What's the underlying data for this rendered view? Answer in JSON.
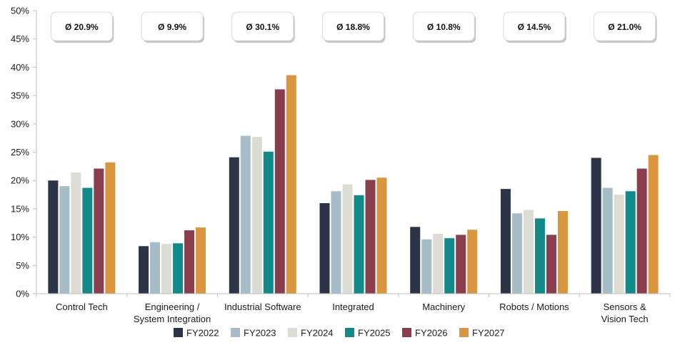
{
  "chart_data": {
    "type": "bar",
    "categories": [
      [
        "Control Tech"
      ],
      [
        "Engineering /",
        "System Integration"
      ],
      [
        "Industrial Software"
      ],
      [
        "Integrated"
      ],
      [
        "Machinery"
      ],
      [
        "Robots / Motions"
      ],
      [
        "Sensors &",
        "Vision Tech"
      ]
    ],
    "averages": [
      "Ø 20.9%",
      "Ø 9.9%",
      "Ø 30.1%",
      "Ø 18.8%",
      "Ø 10.8%",
      "Ø 14.5%",
      "Ø 21.0%"
    ],
    "series": [
      {
        "name": "FY2022",
        "color": "#2c3547",
        "values": [
          20.0,
          8.4,
          24.1,
          16.0,
          11.8,
          18.5,
          24.0
        ]
      },
      {
        "name": "FY2023",
        "color": "#a6bcc6",
        "values": [
          19.0,
          9.1,
          27.9,
          18.1,
          9.6,
          14.2,
          18.7
        ]
      },
      {
        "name": "FY2024",
        "color": "#dcdcd4",
        "values": [
          21.4,
          8.8,
          27.7,
          19.3,
          10.6,
          14.8,
          17.5
        ]
      },
      {
        "name": "FY2025",
        "color": "#128a8a",
        "values": [
          18.7,
          8.9,
          25.1,
          17.4,
          9.8,
          13.3,
          18.1
        ]
      },
      {
        "name": "FY2026",
        "color": "#8a3d4c",
        "values": [
          22.1,
          11.2,
          36.1,
          20.1,
          10.4,
          10.4,
          22.1
        ]
      },
      {
        "name": "FY2027",
        "color": "#d9963f",
        "values": [
          23.2,
          11.7,
          38.6,
          20.5,
          11.3,
          14.6,
          24.5
        ]
      }
    ],
    "ylim": [
      0,
      50
    ],
    "yticks": [
      "0%",
      "5%",
      "10%",
      "15%",
      "20%",
      "25%",
      "30%",
      "35%",
      "40%",
      "45%",
      "50%"
    ],
    "ytick_step": 5,
    "legend_position": "bottom",
    "grid": false,
    "xlabel": "",
    "ylabel": ""
  }
}
